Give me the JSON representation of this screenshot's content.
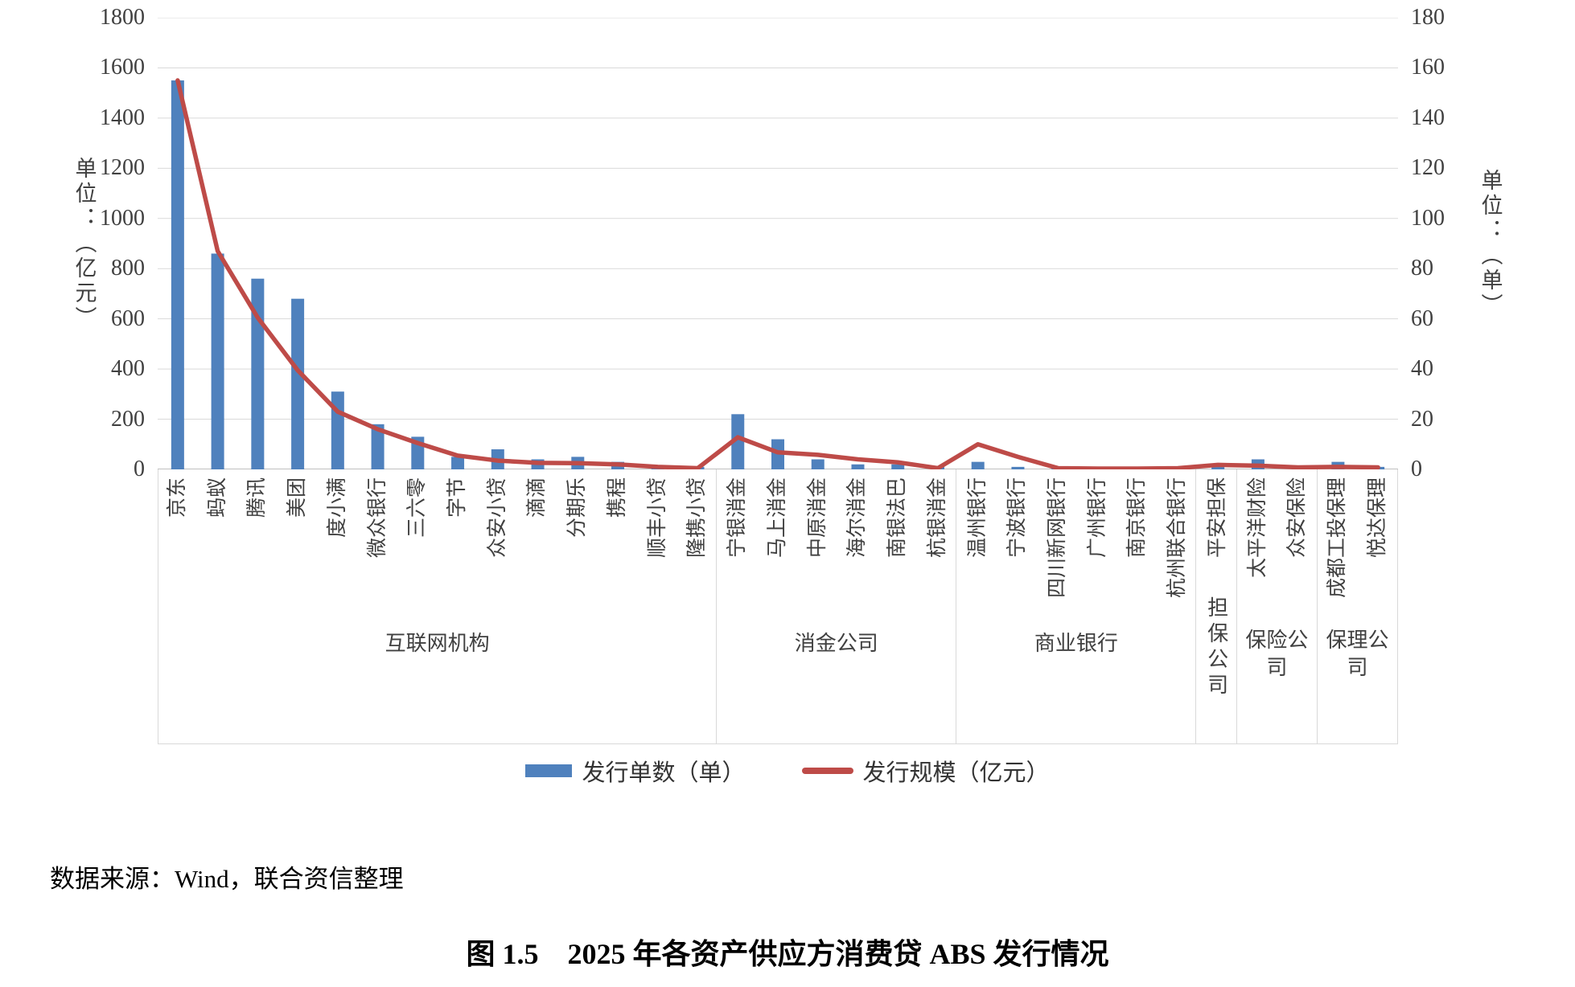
{
  "figure": {
    "source_note": "数据来源：Wind，联合资信整理",
    "caption": "图 1.5　2025 年各资产供应方消费贷 ABS 发行情况"
  },
  "chart_data": {
    "type": "bar",
    "subtype": "bar-line-combo",
    "grid": true,
    "gridline_color": "#d9d9d9",
    "axisline_color": "#bfbfbf",
    "left_axis": {
      "title": "单位：（亿元）",
      "min": 0,
      "max": 1800,
      "step": 200,
      "ticks": [
        0,
        200,
        400,
        600,
        800,
        1000,
        1200,
        1400,
        1600,
        1800
      ]
    },
    "right_axis": {
      "title": "单位：（单）",
      "min": 0,
      "max": 180,
      "step": 20,
      "ticks": [
        0,
        20,
        40,
        60,
        80,
        100,
        120,
        140,
        160,
        180
      ]
    },
    "categories": [
      "京东",
      "蚂蚁",
      "腾讯",
      "美团",
      "度小满",
      "微众银行",
      "三六零",
      "字节",
      "众安小贷",
      "滴滴",
      "分期乐",
      "携程",
      "顺丰小贷",
      "隆携小贷",
      "宁银消金",
      "马上消金",
      "中原消金",
      "海尔消金",
      "南银法巴",
      "杭银消金",
      "温州银行",
      "宁波银行",
      "四川新网银行",
      "广州银行",
      "南京银行",
      "杭州联合银行",
      "平安担保",
      "太平洋财险",
      "众安保险",
      "成都工投保理",
      "悦达保理"
    ],
    "groups": [
      {
        "label": "互联网机构",
        "span": 14,
        "label_style": "horizontal"
      },
      {
        "label": "消金公司",
        "span": 6,
        "label_style": "horizontal"
      },
      {
        "label": "商业银行",
        "span": 6,
        "label_style": "horizontal"
      },
      {
        "label": "担保公司",
        "span": 1,
        "label_style": "vertical"
      },
      {
        "label": "保险公司",
        "span": 2,
        "label_style": "wrapped"
      },
      {
        "label": "保理公司",
        "span": 2,
        "label_style": "wrapped"
      }
    ],
    "series": [
      {
        "name": "发行单数（单）",
        "type": "bar",
        "axis": "right",
        "color": "#4f81bd",
        "values": [
          155,
          86,
          76,
          68,
          31,
          18,
          13,
          5,
          8,
          4,
          5,
          3,
          1,
          1,
          22,
          12,
          4,
          2,
          2,
          1,
          3,
          1,
          1,
          1,
          1,
          1,
          2,
          4,
          1,
          3,
          1
        ]
      },
      {
        "name": "发行规模（亿元）",
        "type": "line",
        "axis": "left",
        "color": "#be4b48",
        "values": [
          1550,
          870,
          605,
          395,
          230,
          160,
          105,
          55,
          35,
          26,
          25,
          20,
          10,
          5,
          128,
          68,
          58,
          40,
          28,
          5,
          100,
          50,
          5,
          3,
          3,
          5,
          18,
          15,
          8,
          10,
          8
        ]
      }
    ],
    "legend_position": "bottom"
  }
}
